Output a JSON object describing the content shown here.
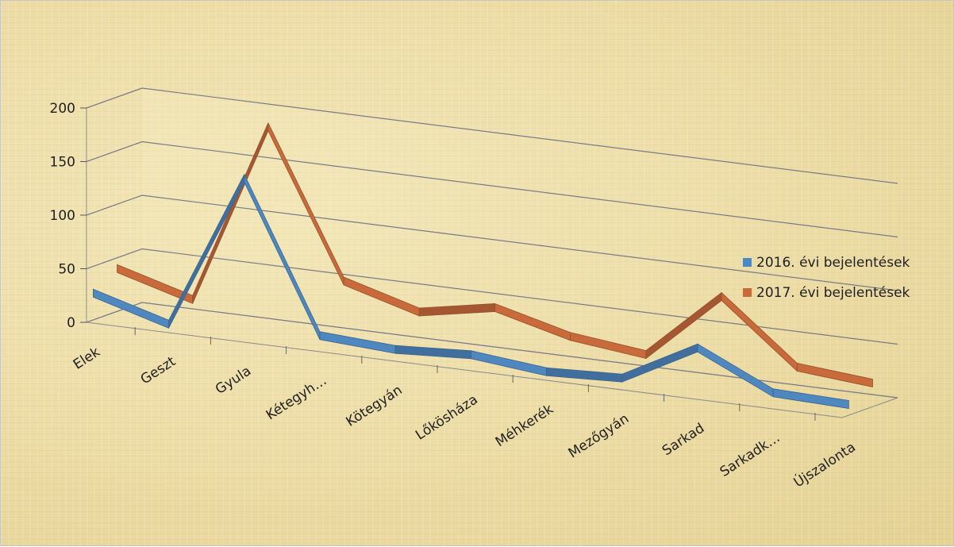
{
  "chart_data": {
    "type": "line",
    "title": "",
    "xlabel": "",
    "ylabel": "",
    "ylim": [
      0,
      200
    ],
    "yticks": [
      0,
      50,
      100,
      150,
      200
    ],
    "grid": true,
    "legend_position": "right",
    "categories": [
      "Elek",
      "Geszt",
      "Gyula",
      "Kétegyh…",
      "Kötegyán",
      "Lőkösháza",
      "Méhkerék",
      "Mezőgyán",
      "Sarkad",
      "Sarkadk…",
      "Újszalonta"
    ],
    "series": [
      {
        "name": "2016. évi bejelentések",
        "color": "#4f87bf",
        "values": [
          25,
          5,
          150,
          12,
          8,
          12,
          5,
          8,
          45,
          12,
          10
        ]
      },
      {
        "name": "2017. évi bejelentések",
        "color": "#c86a3a",
        "values": [
          40,
          20,
          190,
          55,
          35,
          48,
          30,
          22,
          85,
          28,
          22
        ]
      }
    ]
  }
}
